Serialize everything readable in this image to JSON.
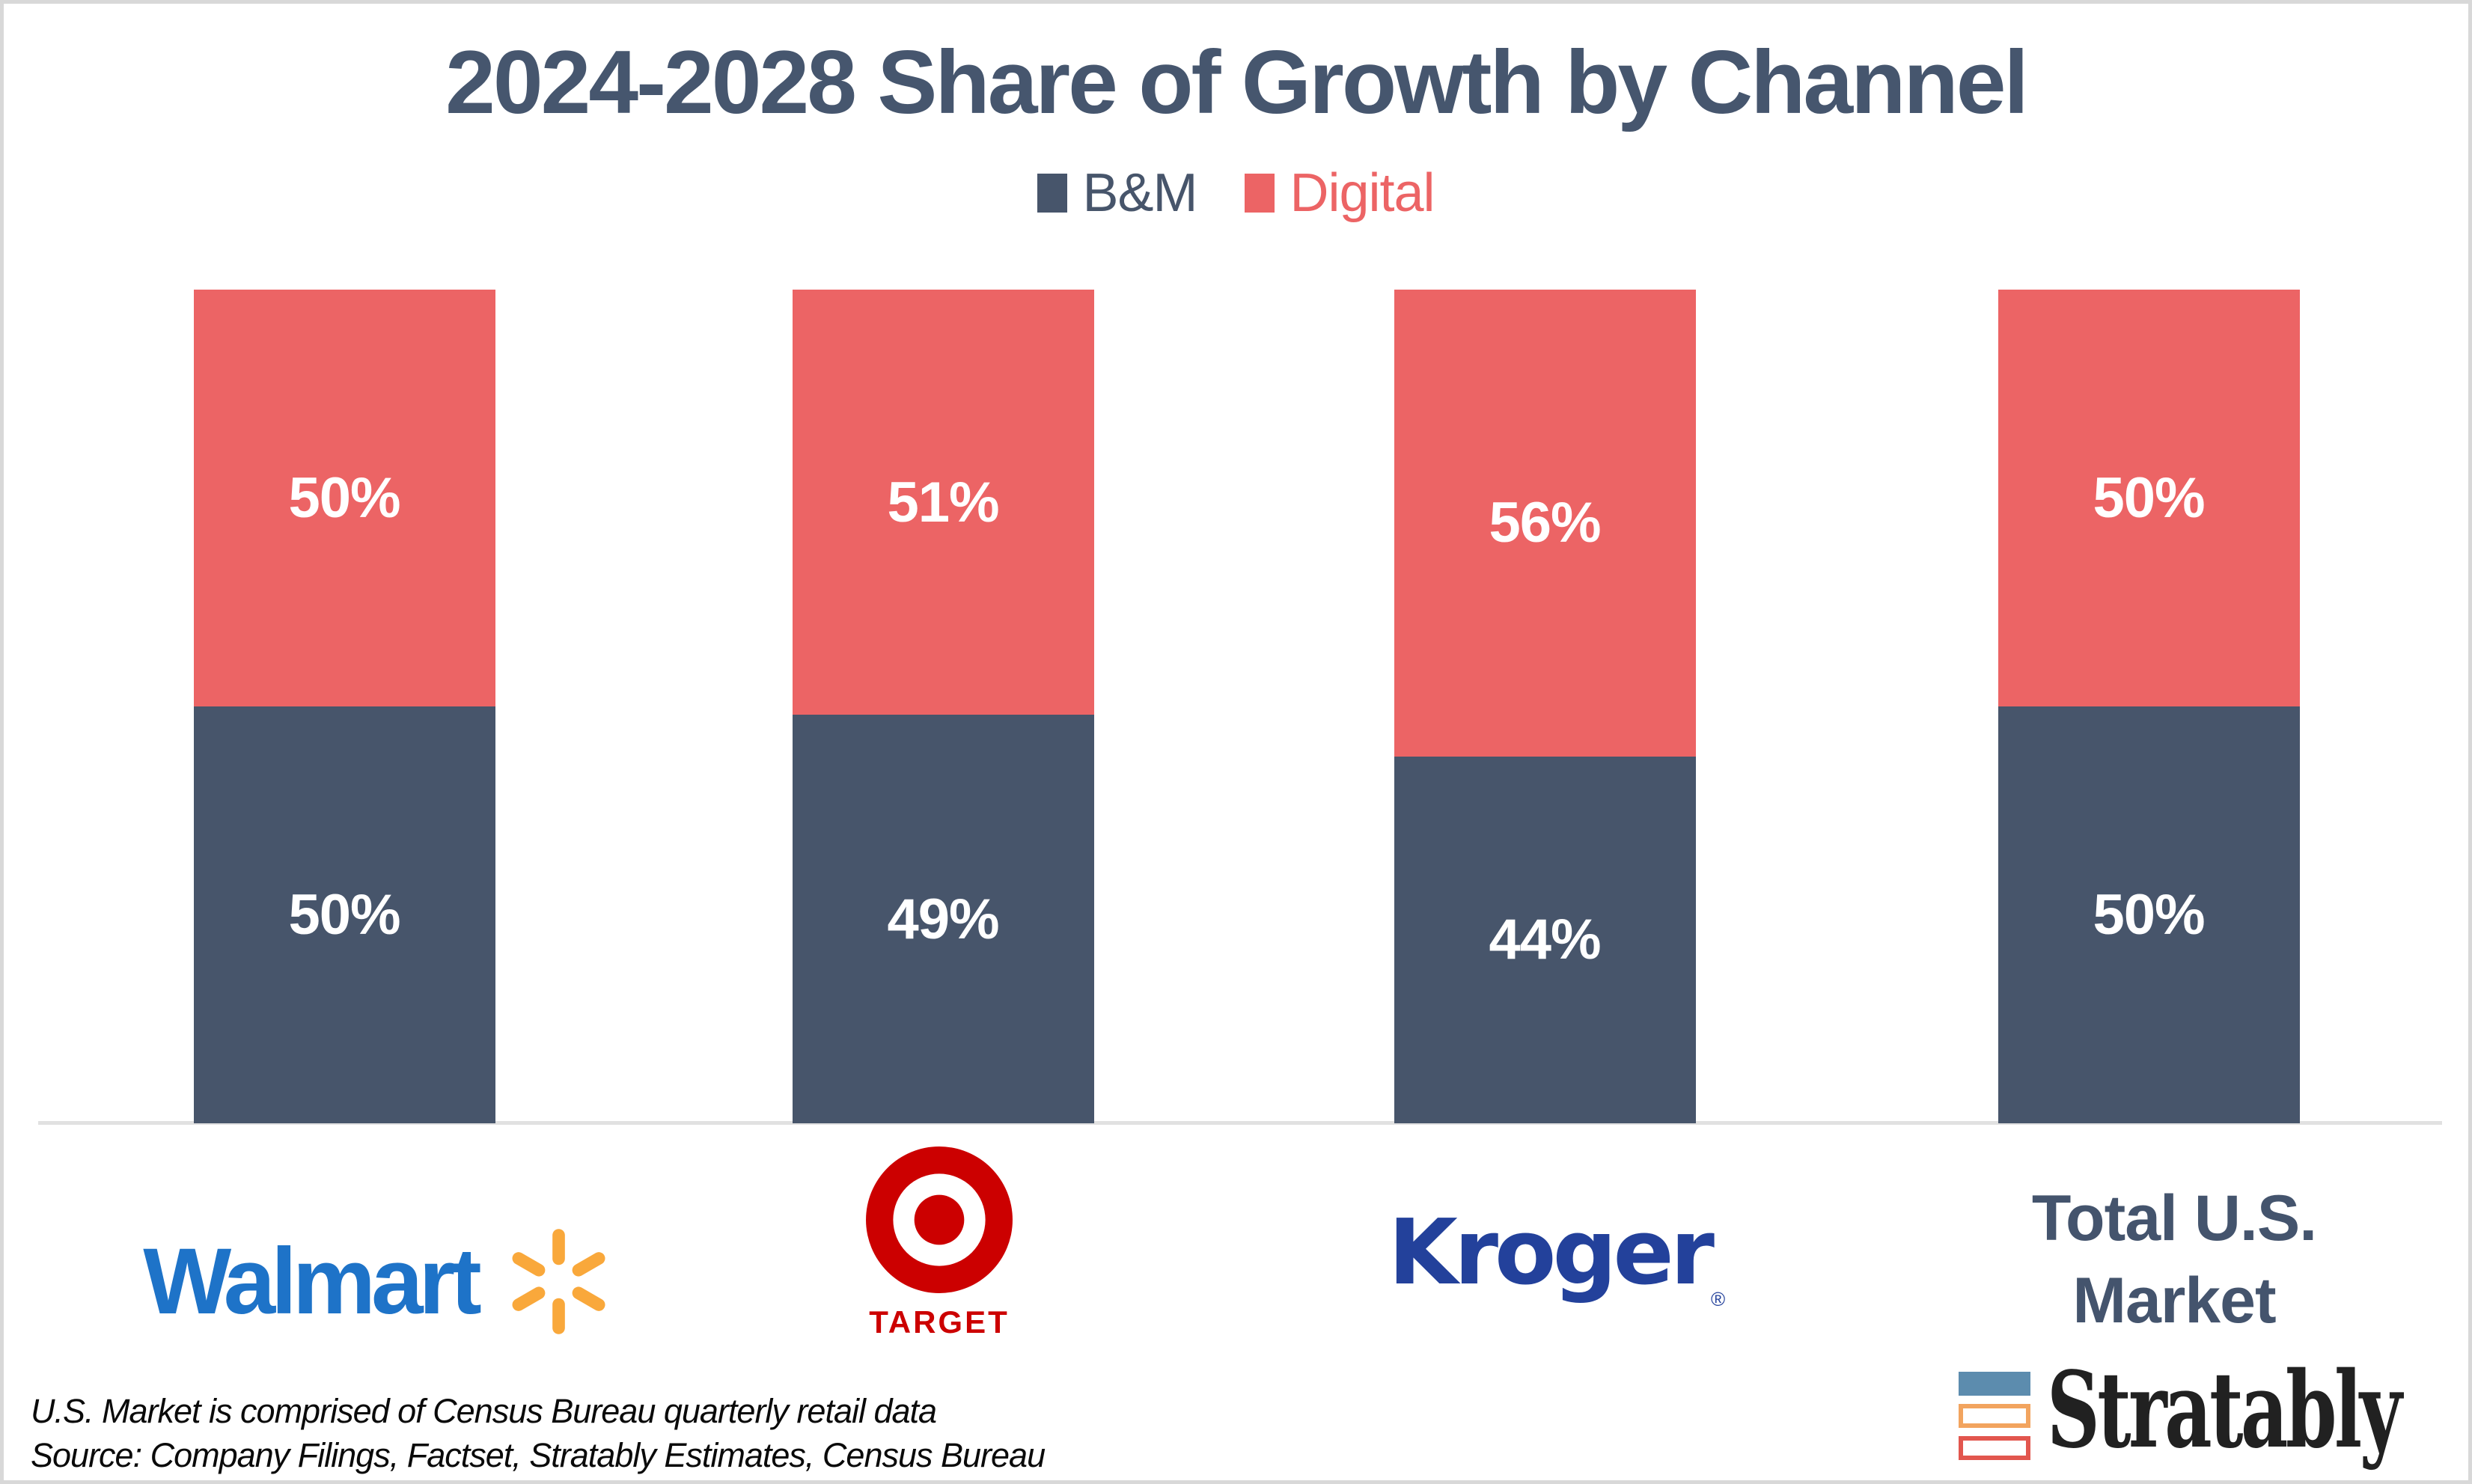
{
  "title": "2024-2028 Share of Growth by Channel",
  "legend": {
    "items": [
      {
        "label": "B&M",
        "color": "#47556B"
      },
      {
        "label": "Digital",
        "color": "#EC6465"
      }
    ]
  },
  "chart_data": {
    "type": "bar",
    "subtype": "stacked-100-percent",
    "title": "2024-2028 Share of Growth by Channel",
    "categories": [
      "Walmart",
      "Target",
      "Kroger",
      "Total U.S. Market"
    ],
    "series": [
      {
        "name": "B&M",
        "color": "#47556B",
        "values": [
          50,
          49,
          44,
          50
        ]
      },
      {
        "name": "Digital",
        "color": "#EC6465",
        "values": [
          50,
          51,
          56,
          50
        ]
      }
    ],
    "value_label_format": "{v}%",
    "value_label_color": "#FFFFFF",
    "ylim": [
      0,
      100
    ],
    "grid": false,
    "legend_position": "top",
    "xlabel": "",
    "ylabel": ""
  },
  "category_logos": {
    "walmart": {
      "text": "Walmart",
      "text_color": "#1E73C8",
      "spark_color": "#F9A83B"
    },
    "target": {
      "text": "TARGET",
      "color": "#CC0000"
    },
    "kroger": {
      "text": "Kroger",
      "reg_mark": "®",
      "color": "#23419B"
    },
    "total_market": {
      "line1": "Total U.S.",
      "line2": "Market",
      "color": "#44546D"
    }
  },
  "branding": {
    "wordmark": "Stratably",
    "icon_bar_colors": [
      "#5C8CAE",
      "#F2A45F",
      "#E2564E"
    ]
  },
  "footnotes": [
    "U.S. Market is comprised of Census Bureau quarterly retail data",
    "Source: Company Filings, Factset, Stratably Estimates, Census Bureau"
  ]
}
